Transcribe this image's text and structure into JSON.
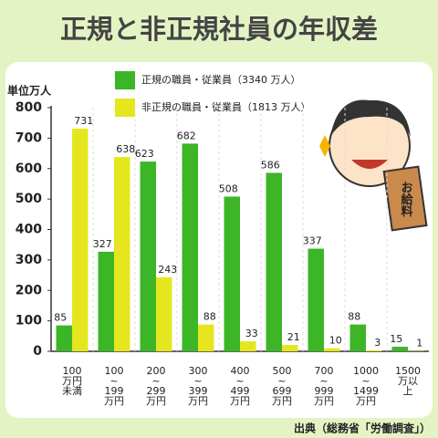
{
  "chart_data": {
    "type": "bar",
    "title": "正規と非正規社員の年収差",
    "y_label": "単位万人",
    "source": "出典（総務省「労働調査」）",
    "illustration_text": "お給料",
    "categories": [
      "100\n万円\n未満",
      "100\n~\n199\n万円",
      "200\n~\n299\n万円",
      "300\n~\n399\n万円",
      "400\n~\n499\n万円",
      "500\n~\n699\n万円",
      "700\n~\n999\n万円",
      "1000\n~\n1499\n万円",
      "1500\n万以\n上"
    ],
    "series": [
      {
        "name": "正規の職員・従業員（3340 万人）",
        "color": "#3cb527",
        "values": [
          85,
          327,
          623,
          682,
          508,
          586,
          337,
          88,
          15
        ]
      },
      {
        "name": "非正規の職員・従業員（1813 万人）",
        "color": "#e6e61e",
        "values": [
          731,
          638,
          243,
          88,
          33,
          21,
          10,
          3,
          1
        ]
      }
    ],
    "ylim": [
      0,
      800
    ],
    "yticks": [
      0,
      100,
      200,
      300,
      400,
      500,
      600,
      700,
      800
    ]
  }
}
